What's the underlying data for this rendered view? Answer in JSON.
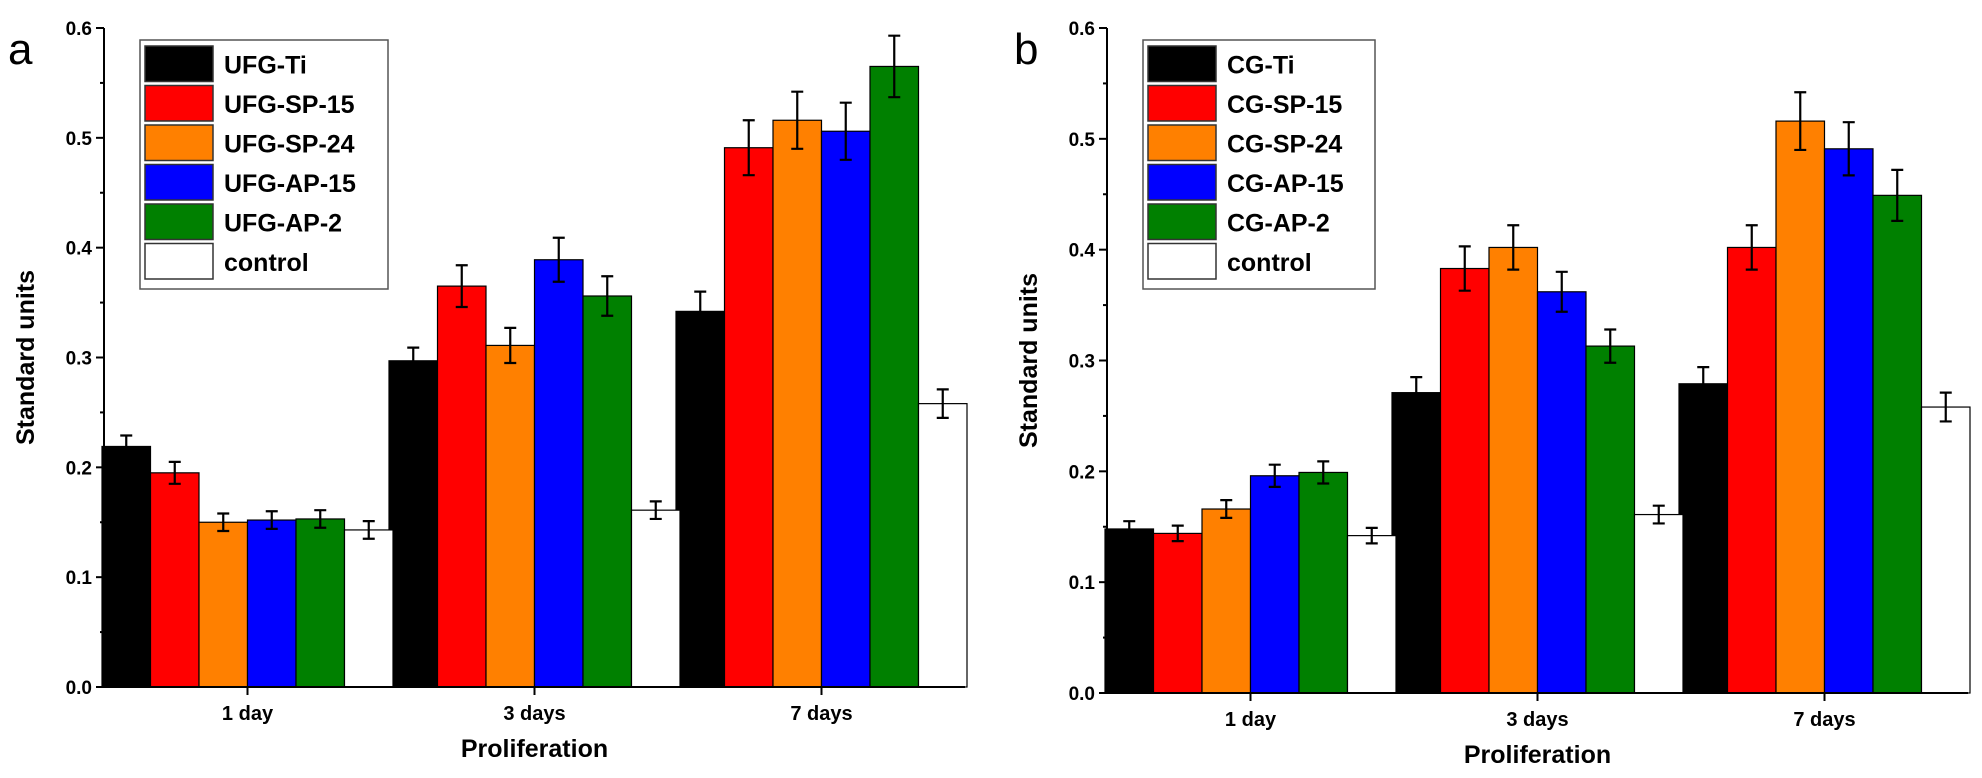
{
  "chart_data": [
    {
      "type": "bar",
      "panel_label": "a",
      "categories": [
        "1 day",
        "3 days",
        "7 days"
      ],
      "xlabel": "Proliferation",
      "ylabel": "Standard units",
      "ylim": [
        0,
        0.6
      ],
      "yticks": [
        "0.0",
        "0.1",
        "0.2",
        "0.3",
        "0.4",
        "0.5",
        "0.6"
      ],
      "legend_position": "top-left",
      "series": [
        {
          "name": "UFG-Ti",
          "color": "#000000",
          "values": [
            0.219,
            0.297,
            0.342
          ],
          "errors": [
            0.01,
            0.012,
            0.018
          ]
        },
        {
          "name": "UFG-SP-15",
          "color": "#ff0000",
          "values": [
            0.195,
            0.365,
            0.491
          ],
          "errors": [
            0.01,
            0.019,
            0.025
          ]
        },
        {
          "name": "UFG-SP-24",
          "color": "#ff8000",
          "values": [
            0.15,
            0.311,
            0.516
          ],
          "errors": [
            0.008,
            0.016,
            0.026
          ]
        },
        {
          "name": "UFG-AP-15",
          "color": "#0000ff",
          "values": [
            0.152,
            0.389,
            0.506
          ],
          "errors": [
            0.008,
            0.02,
            0.026
          ]
        },
        {
          "name": "UFG-AP-2",
          "color": "#008000",
          "values": [
            0.153,
            0.356,
            0.565
          ],
          "errors": [
            0.008,
            0.018,
            0.028
          ]
        },
        {
          "name": "control",
          "color": "#ffffff",
          "values": [
            0.143,
            0.161,
            0.258
          ],
          "errors": [
            0.008,
            0.008,
            0.013
          ]
        }
      ]
    },
    {
      "type": "bar",
      "panel_label": "b",
      "categories": [
        "1 day",
        "3 days",
        "7 days"
      ],
      "xlabel": "Proliferation",
      "ylabel": "Standard units",
      "ylim": [
        0,
        0.6
      ],
      "yticks": [
        "0.0",
        "0.1",
        "0.2",
        "0.3",
        "0.4",
        "0.5",
        "0.6"
      ],
      "legend_position": "top-left",
      "series": [
        {
          "name": "CG-Ti",
          "color": "#000000",
          "values": [
            0.148,
            0.271,
            0.279
          ],
          "errors": [
            0.007,
            0.014,
            0.015
          ]
        },
        {
          "name": "CG-SP-15",
          "color": "#ff0000",
          "values": [
            0.144,
            0.383,
            0.402
          ],
          "errors": [
            0.007,
            0.02,
            0.02
          ]
        },
        {
          "name": "CG-SP-24",
          "color": "#ff8000",
          "values": [
            0.166,
            0.402,
            0.516
          ],
          "errors": [
            0.008,
            0.02,
            0.026
          ]
        },
        {
          "name": "CG-AP-15",
          "color": "#0000ff",
          "values": [
            0.196,
            0.362,
            0.491
          ],
          "errors": [
            0.01,
            0.018,
            0.024
          ]
        },
        {
          "name": "CG-AP-2",
          "color": "#008000",
          "values": [
            0.199,
            0.313,
            0.449
          ],
          "errors": [
            0.01,
            0.015,
            0.023
          ]
        },
        {
          "name": "control",
          "color": "#ffffff",
          "values": [
            0.142,
            0.161,
            0.258
          ],
          "errors": [
            0.007,
            0.008,
            0.013
          ]
        }
      ]
    }
  ]
}
